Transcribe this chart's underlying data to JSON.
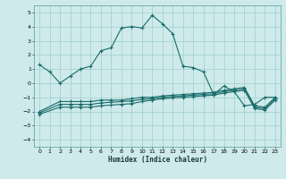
{
  "xlabel": "Humidex (Indice chaleur)",
  "bg_color": "#ceeaea",
  "grid_color": "#9ecece",
  "line_color": "#1a6b6b",
  "xlim": [
    -0.5,
    23.5
  ],
  "ylim": [
    -4.5,
    5.5
  ],
  "xticks": [
    0,
    1,
    2,
    3,
    4,
    5,
    6,
    7,
    8,
    9,
    10,
    11,
    12,
    13,
    14,
    15,
    16,
    17,
    18,
    19,
    20,
    21,
    22,
    23
  ],
  "yticks": [
    -4,
    -3,
    -2,
    -1,
    0,
    1,
    2,
    3,
    4,
    5
  ],
  "curve1_x": [
    0,
    1,
    2,
    3,
    4,
    5,
    6,
    7,
    8,
    9,
    10,
    11,
    12,
    13,
    14,
    15,
    16,
    17,
    18,
    19,
    20,
    21,
    22,
    23
  ],
  "curve1_y": [
    1.3,
    0.8,
    0.0,
    0.5,
    1.0,
    1.2,
    2.3,
    2.5,
    3.9,
    4.0,
    3.9,
    4.8,
    4.2,
    3.5,
    1.2,
    1.1,
    0.8,
    -0.8,
    -0.2,
    -0.6,
    -1.6,
    -1.5,
    -1.0,
    -1.0
  ],
  "curve2_x": [
    0,
    2,
    3,
    4,
    5,
    6,
    7,
    8,
    9,
    10,
    11,
    12,
    13,
    14,
    15,
    16,
    17,
    18,
    19,
    20,
    21,
    22,
    23
  ],
  "curve2_y": [
    -2.0,
    -1.3,
    -1.3,
    -1.3,
    -1.3,
    -1.2,
    -1.2,
    -1.2,
    -1.1,
    -1.0,
    -1.0,
    -0.9,
    -0.85,
    -0.8,
    -0.75,
    -0.7,
    -0.65,
    -0.5,
    -0.4,
    -0.3,
    -1.6,
    -1.7,
    -1.0
  ],
  "curve3_x": [
    0,
    2,
    3,
    4,
    5,
    6,
    7,
    8,
    9,
    10,
    11,
    12,
    13,
    14,
    15,
    16,
    17,
    18,
    19,
    20,
    21,
    22,
    23
  ],
  "curve3_y": [
    -2.1,
    -1.5,
    -1.5,
    -1.5,
    -1.5,
    -1.4,
    -1.35,
    -1.3,
    -1.25,
    -1.15,
    -1.1,
    -1.0,
    -0.95,
    -0.9,
    -0.85,
    -0.8,
    -0.75,
    -0.6,
    -0.5,
    -0.4,
    -1.7,
    -1.8,
    -1.1
  ],
  "curve4_x": [
    0,
    2,
    3,
    4,
    5,
    6,
    7,
    8,
    9,
    10,
    11,
    12,
    13,
    14,
    15,
    16,
    17,
    18,
    19,
    20,
    21,
    22,
    23
  ],
  "curve4_y": [
    -2.2,
    -1.7,
    -1.7,
    -1.7,
    -1.7,
    -1.6,
    -1.55,
    -1.5,
    -1.45,
    -1.3,
    -1.2,
    -1.1,
    -1.05,
    -1.0,
    -0.95,
    -0.9,
    -0.85,
    -0.7,
    -0.6,
    -0.5,
    -1.8,
    -1.9,
    -1.2
  ],
  "figsize": [
    3.2,
    2.0
  ],
  "dpi": 100
}
